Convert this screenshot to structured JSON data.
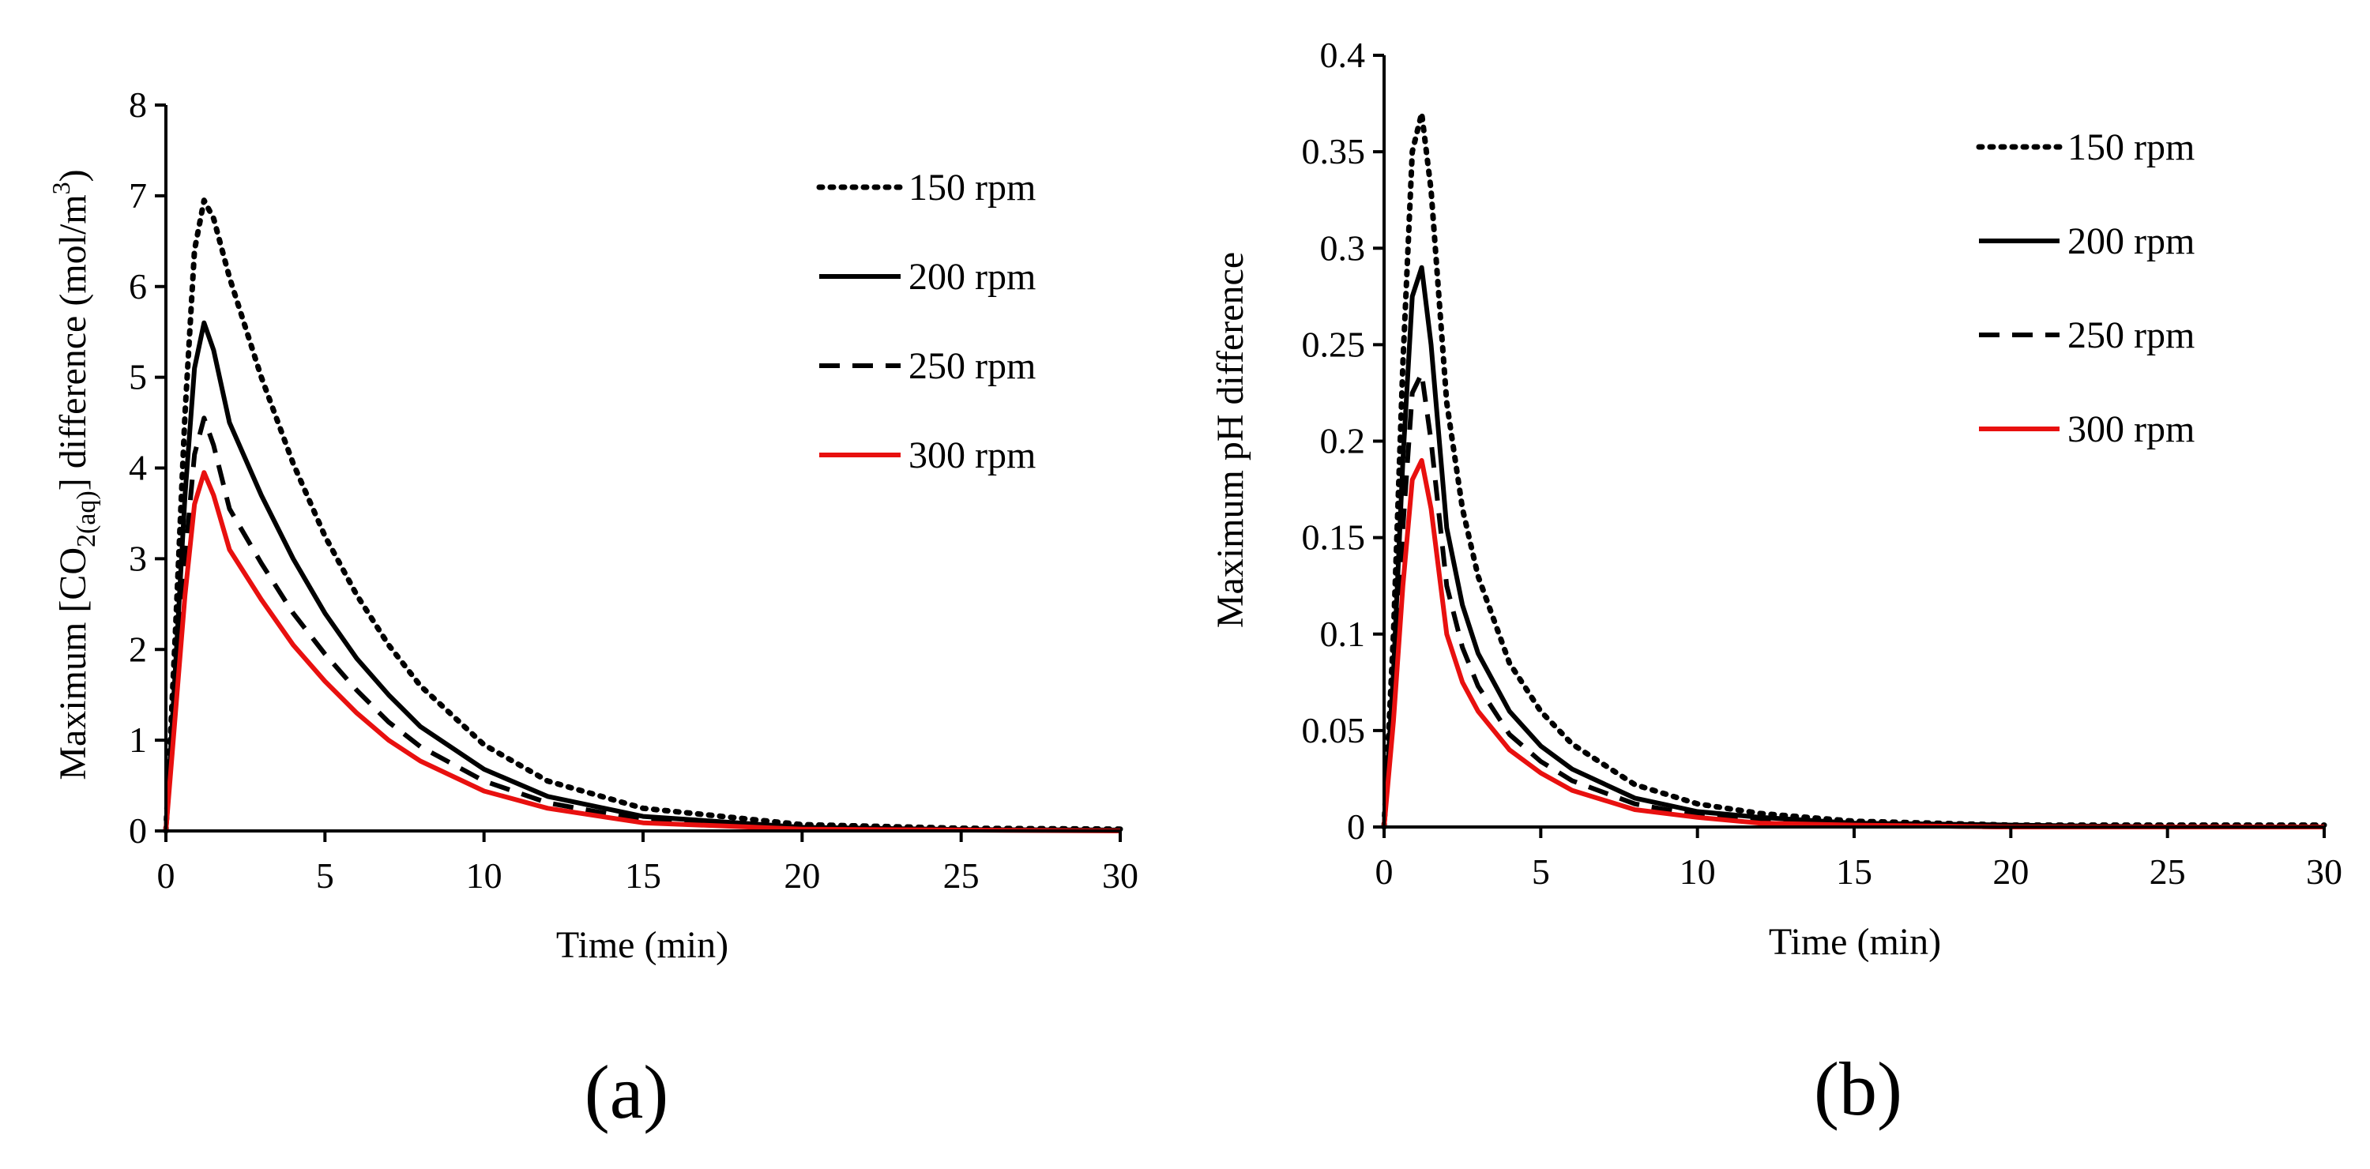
{
  "chart_data": [
    {
      "type": "line",
      "panel_label": "(a)",
      "xlabel": "Time (min)",
      "ylabel_parts": {
        "before": "Maximum [CO",
        "sub": "2(aq)",
        "mid": "] difference  (mol/m",
        "sup": "3",
        "after": ")"
      },
      "xlim": [
        0,
        30
      ],
      "ylim": [
        0,
        8
      ],
      "xticks": [
        0,
        5,
        10,
        15,
        20,
        25,
        30
      ],
      "yticks": [
        0,
        1,
        2,
        3,
        4,
        5,
        6,
        7,
        8
      ],
      "grid": false,
      "legend_position": "top-right",
      "series": [
        {
          "name": "150 rpm",
          "style": "dotted",
          "color": "#000000",
          "x": [
            0,
            0.3,
            0.6,
            0.9,
            1.2,
            1.5,
            2,
            3,
            4,
            5,
            6,
            7,
            8,
            10,
            12,
            15,
            20,
            25,
            30
          ],
          "y": [
            0,
            2.2,
            4.6,
            6.4,
            6.95,
            6.75,
            6.1,
            5.0,
            4.05,
            3.25,
            2.6,
            2.05,
            1.6,
            0.95,
            0.55,
            0.25,
            0.07,
            0.03,
            0.02
          ]
        },
        {
          "name": "200 rpm",
          "style": "solid",
          "color": "#000000",
          "x": [
            0,
            0.3,
            0.6,
            0.9,
            1.2,
            1.5,
            2,
            3,
            4,
            5,
            6,
            7,
            8,
            10,
            12,
            15,
            20,
            25,
            30
          ],
          "y": [
            0,
            1.8,
            3.7,
            5.1,
            5.6,
            5.3,
            4.5,
            3.7,
            3.0,
            2.4,
            1.9,
            1.5,
            1.15,
            0.68,
            0.38,
            0.16,
            0.04,
            0.015,
            0.01
          ]
        },
        {
          "name": "250 rpm",
          "style": "dashed",
          "color": "#000000",
          "x": [
            0,
            0.3,
            0.6,
            0.9,
            1.2,
            1.5,
            2,
            3,
            4,
            5,
            6,
            7,
            8,
            10,
            12,
            15,
            20,
            25,
            30
          ],
          "y": [
            0,
            1.5,
            3.0,
            4.15,
            4.55,
            4.25,
            3.55,
            2.95,
            2.4,
            1.95,
            1.55,
            1.2,
            0.93,
            0.55,
            0.31,
            0.12,
            0.03,
            0.01,
            0.01
          ]
        },
        {
          "name": "300 rpm",
          "style": "solid",
          "color": "#e8100f",
          "x": [
            0,
            0.3,
            0.6,
            0.9,
            1.2,
            1.5,
            2,
            3,
            4,
            5,
            6,
            7,
            8,
            10,
            12,
            15,
            20,
            25,
            30
          ],
          "y": [
            0,
            1.3,
            2.6,
            3.6,
            3.95,
            3.7,
            3.1,
            2.55,
            2.05,
            1.65,
            1.3,
            1.0,
            0.77,
            0.44,
            0.25,
            0.09,
            0.02,
            0.01,
            0.0
          ]
        }
      ]
    },
    {
      "type": "line",
      "panel_label": "(b)",
      "xlabel": "Time (min)",
      "ylabel": "Maximum pH difference",
      "xlim": [
        0,
        30
      ],
      "ylim": [
        0,
        0.4
      ],
      "xticks": [
        0,
        5,
        10,
        15,
        20,
        25,
        30
      ],
      "yticks": [
        0,
        0.05,
        0.1,
        0.15,
        0.2,
        0.25,
        0.3,
        0.35,
        0.4
      ],
      "grid": false,
      "legend_position": "top-right",
      "series": [
        {
          "name": "150 rpm",
          "style": "dotted",
          "color": "#000000",
          "x": [
            0,
            0.3,
            0.6,
            0.9,
            1.2,
            1.5,
            2,
            2.5,
            3,
            4,
            5,
            6,
            8,
            10,
            12,
            15,
            20,
            25,
            30
          ],
          "y": [
            0,
            0.1,
            0.24,
            0.35,
            0.37,
            0.33,
            0.22,
            0.165,
            0.13,
            0.085,
            0.06,
            0.043,
            0.022,
            0.012,
            0.007,
            0.003,
            0.001,
            0.001,
            0.001
          ]
        },
        {
          "name": "200 rpm",
          "style": "solid",
          "color": "#000000",
          "x": [
            0,
            0.3,
            0.6,
            0.9,
            1.2,
            1.5,
            2,
            2.5,
            3,
            4,
            5,
            6,
            8,
            10,
            12,
            15,
            20,
            25,
            30
          ],
          "y": [
            0,
            0.08,
            0.19,
            0.275,
            0.29,
            0.25,
            0.155,
            0.115,
            0.09,
            0.06,
            0.042,
            0.03,
            0.015,
            0.008,
            0.005,
            0.002,
            0.001,
            0.0,
            0.0
          ]
        },
        {
          "name": "250 rpm",
          "style": "dashed",
          "color": "#000000",
          "x": [
            0,
            0.3,
            0.6,
            0.9,
            1.2,
            1.5,
            2,
            2.5,
            3,
            4,
            5,
            6,
            8,
            10,
            12,
            15,
            20,
            25,
            30
          ],
          "y": [
            0,
            0.065,
            0.155,
            0.225,
            0.235,
            0.2,
            0.125,
            0.093,
            0.073,
            0.048,
            0.034,
            0.024,
            0.012,
            0.006,
            0.003,
            0.001,
            0.0,
            0.0,
            0.0
          ]
        },
        {
          "name": "300 rpm",
          "style": "solid",
          "color": "#e8100f",
          "x": [
            0,
            0.3,
            0.6,
            0.9,
            1.2,
            1.5,
            2,
            2.5,
            3,
            4,
            5,
            6,
            8,
            10,
            12,
            15,
            20,
            25,
            30
          ],
          "y": [
            0,
            0.055,
            0.125,
            0.18,
            0.19,
            0.165,
            0.1,
            0.075,
            0.06,
            0.04,
            0.028,
            0.019,
            0.009,
            0.005,
            0.002,
            0.001,
            0.0,
            0.0,
            0.0
          ]
        }
      ]
    }
  ]
}
